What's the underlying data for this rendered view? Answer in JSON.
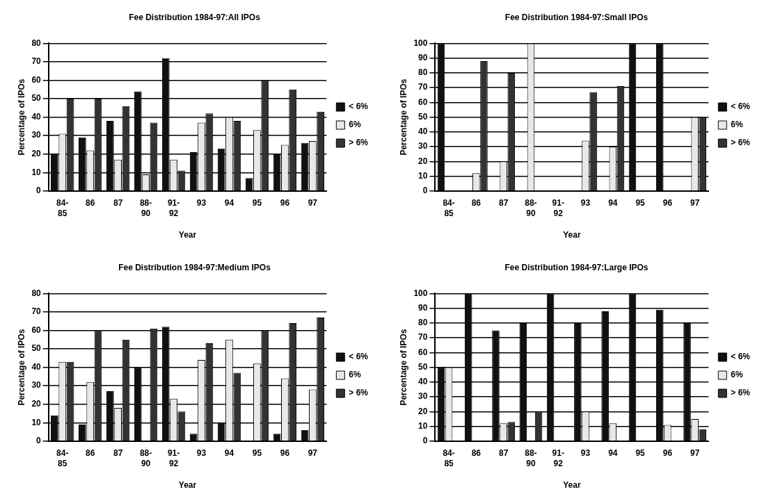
{
  "chart_data": [
    {
      "type": "bar",
      "title": "Fee Distribution 1984-97:All IPOs",
      "xlabel": "Year",
      "ylabel": "Percentage of IPOs",
      "categories": [
        "84-85",
        "86",
        "87",
        "88-90",
        "91-92",
        "93",
        "94",
        "95",
        "96",
        "97"
      ],
      "series": [
        {
          "name": "< 6%",
          "color": "#111111",
          "values": [
            20,
            29,
            38,
            54,
            72,
            21,
            23,
            7,
            20,
            26
          ]
        },
        {
          "name": "6%",
          "color": "#e8e8e8",
          "values": [
            31,
            22,
            17,
            9,
            17,
            37,
            40,
            33,
            25,
            27
          ]
        },
        {
          "name": "> 6%",
          "color": "#333333",
          "values": [
            50,
            50,
            46,
            37,
            11,
            42,
            38,
            60,
            55,
            43
          ]
        }
      ],
      "ylim": [
        0,
        80
      ],
      "yticks": [
        0,
        10,
        20,
        30,
        40,
        50,
        60,
        70,
        80
      ],
      "grid": "y",
      "legend": "right"
    },
    {
      "type": "bar",
      "title": "Fee Distribution 1984-97:Small IPOs",
      "xlabel": "Year",
      "ylabel": "Percentage of IPOs",
      "categories": [
        "84-85",
        "86",
        "87",
        "88-90",
        "91-92",
        "93",
        "94",
        "95",
        "96",
        "97"
      ],
      "series": [
        {
          "name": "< 6%",
          "color": "#111111",
          "values": [
            100,
            0,
            0,
            0,
            0,
            0,
            0,
            100,
            100,
            0
          ]
        },
        {
          "name": "6%",
          "color": "#e8e8e8",
          "values": [
            0,
            12,
            20,
            100,
            0,
            34,
            30,
            0,
            0,
            50
          ]
        },
        {
          "name": "> 6%",
          "color": "#333333",
          "values": [
            0,
            88,
            80,
            0,
            0,
            67,
            71,
            0,
            0,
            50
          ]
        }
      ],
      "ylim": [
        0,
        100
      ],
      "yticks": [
        0,
        10,
        20,
        30,
        40,
        50,
        60,
        70,
        80,
        90,
        100
      ],
      "grid": "y",
      "legend": "right"
    },
    {
      "type": "bar",
      "title": "Fee Distribution 1984-97:Medium IPOs",
      "xlabel": "Year",
      "ylabel": "Percentage of IPOs",
      "categories": [
        "84-85",
        "86",
        "87",
        "88-90",
        "91-92",
        "93",
        "94",
        "95",
        "96",
        "97"
      ],
      "series": [
        {
          "name": "< 6%",
          "color": "#111111",
          "values": [
            14,
            9,
            27,
            40,
            62,
            4,
            10,
            0,
            4,
            6
          ]
        },
        {
          "name": "6%",
          "color": "#e8e8e8",
          "values": [
            43,
            32,
            18,
            0,
            23,
            44,
            55,
            42,
            34,
            28
          ]
        },
        {
          "name": "> 6%",
          "color": "#333333",
          "values": [
            43,
            60,
            55,
            61,
            16,
            53,
            37,
            60,
            64,
            67
          ]
        }
      ],
      "ylim": [
        0,
        80
      ],
      "yticks": [
        0,
        10,
        20,
        30,
        40,
        50,
        60,
        70,
        80
      ],
      "grid": "y",
      "legend": "right"
    },
    {
      "type": "bar",
      "title": "Fee Distribution 1984-97:Large IPOs",
      "xlabel": "Year",
      "ylabel": "Percentage of IPOs",
      "categories": [
        "84-85",
        "86",
        "87",
        "88-90",
        "91-92",
        "93",
        "94",
        "95",
        "96",
        "97"
      ],
      "series": [
        {
          "name": "< 6%",
          "color": "#111111",
          "values": [
            50,
            100,
            75,
            80,
            100,
            80,
            88,
            100,
            89,
            80
          ]
        },
        {
          "name": "6%",
          "color": "#e8e8e8",
          "values": [
            50,
            0,
            12,
            0,
            0,
            20,
            12,
            0,
            11,
            15
          ]
        },
        {
          "name": "> 6%",
          "color": "#333333",
          "values": [
            0,
            0,
            13,
            20,
            0,
            0,
            0,
            0,
            0,
            8
          ]
        }
      ],
      "ylim": [
        0,
        100
      ],
      "yticks": [
        0,
        10,
        20,
        30,
        40,
        50,
        60,
        70,
        80,
        90,
        100
      ],
      "grid": "y",
      "legend": "right"
    }
  ]
}
